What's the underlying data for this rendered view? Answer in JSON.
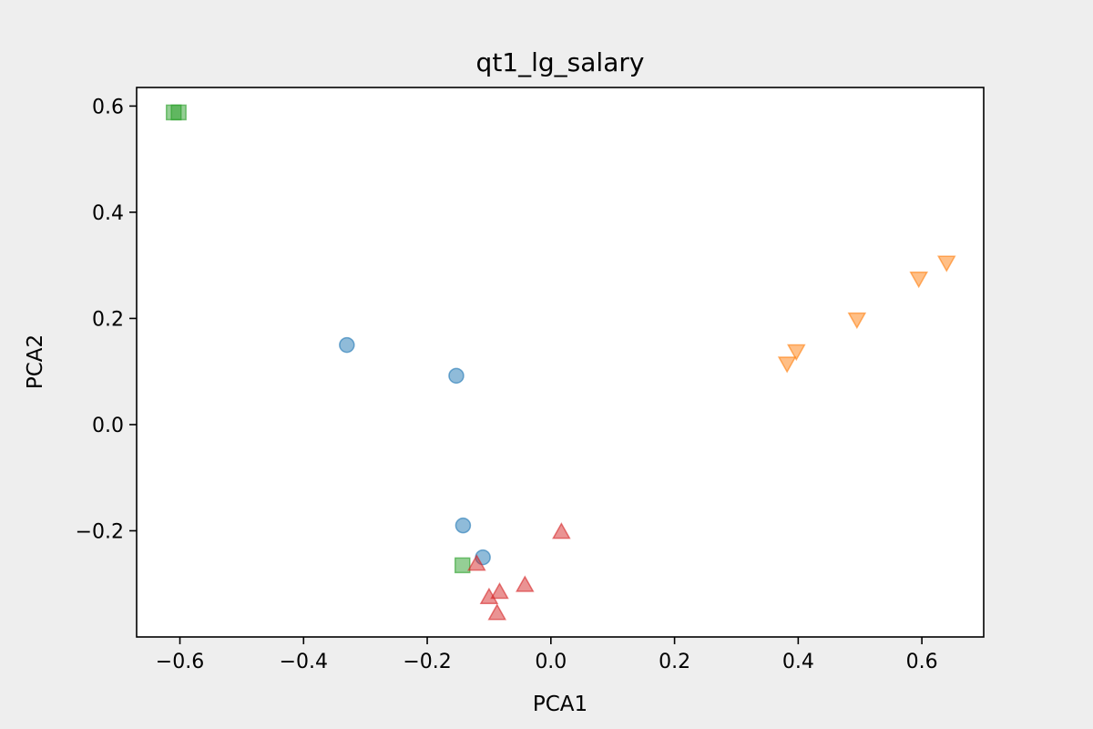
{
  "chart_data": {
    "type": "scatter",
    "title": "qt1_lg_salary",
    "xlabel": "PCA1",
    "ylabel": "PCA2",
    "xlim": [
      -0.67,
      0.7
    ],
    "ylim": [
      -0.4,
      0.635
    ],
    "xticks": [
      -0.6,
      -0.4,
      -0.2,
      0.0,
      0.2,
      0.4,
      0.6
    ],
    "xtick_labels": [
      "−0.6",
      "−0.4",
      "−0.2",
      "0.0",
      "0.2",
      "0.4",
      "0.6"
    ],
    "yticks": [
      -0.2,
      0.0,
      0.2,
      0.4,
      0.6
    ],
    "ytick_labels": [
      "−0.2",
      "0.0",
      "0.2",
      "0.4",
      "0.6"
    ],
    "grid": false,
    "series": [
      {
        "marker": "circle",
        "color": "#1f77b4",
        "points": [
          [
            -0.33,
            0.15
          ],
          [
            -0.153,
            0.092
          ],
          [
            -0.142,
            -0.19
          ],
          [
            -0.11,
            -0.25
          ]
        ]
      },
      {
        "marker": "triangle-down",
        "color": "#ff7f0e",
        "points": [
          [
            0.64,
            0.305
          ],
          [
            0.595,
            0.275
          ],
          [
            0.495,
            0.198
          ],
          [
            0.397,
            0.138
          ],
          [
            0.382,
            0.115
          ]
        ]
      },
      {
        "marker": "square",
        "color": "#2ca02c",
        "points": [
          [
            -0.61,
            0.588
          ],
          [
            -0.602,
            0.588
          ],
          [
            -0.143,
            -0.265
          ]
        ]
      },
      {
        "marker": "triangle-up",
        "color": "#d62728",
        "points": [
          [
            0.017,
            -0.202
          ],
          [
            -0.042,
            -0.302
          ],
          [
            -0.083,
            -0.315
          ],
          [
            -0.1,
            -0.325
          ],
          [
            -0.087,
            -0.355
          ],
          [
            -0.12,
            -0.262
          ]
        ]
      }
    ]
  }
}
